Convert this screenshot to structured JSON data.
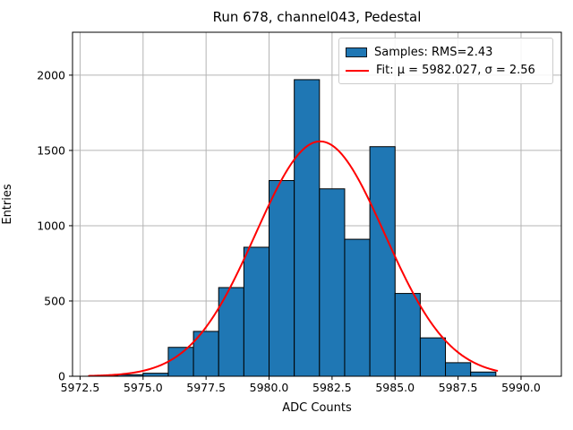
{
  "figure": {
    "title": "Run 678, channel043, Pedestal"
  },
  "chart_data": {
    "type": "bar",
    "subtype": "histogram-with-gaussian-fit",
    "title": "Run 678, channel043, Pedestal",
    "xlabel": "ADC Counts",
    "ylabel": "Entries",
    "xlim": [
      5972.2,
      5991.6
    ],
    "ylim": [
      0,
      2285
    ],
    "grid": true,
    "grid_color": "#b4b4b4",
    "x_ticks": [
      5972.5,
      5975.0,
      5977.5,
      5980.0,
      5982.5,
      5985.0,
      5987.5,
      5990.0
    ],
    "x_tick_labels": [
      "5972.5",
      "5975.0",
      "5977.5",
      "5980.0",
      "5982.5",
      "5985.0",
      "5987.5",
      "5990.0"
    ],
    "y_ticks": [
      0,
      500,
      1000,
      1500,
      2000
    ],
    "y_tick_labels": [
      "0",
      "500",
      "1000",
      "1500",
      "2000"
    ],
    "histogram": {
      "legend_label": "Samples: RMS=2.43",
      "fill_color": "#1f77b4",
      "edge_color": "#000000",
      "bin_edges": [
        5973,
        5974,
        5975,
        5976,
        5977,
        5978,
        5979,
        5980,
        5981,
        5982,
        5983,
        5984,
        5985,
        5986,
        5987,
        5988,
        5989
      ],
      "counts": [
        4,
        10,
        20,
        192,
        298,
        589,
        857,
        1300,
        1970,
        1245,
        910,
        1525,
        550,
        255,
        90,
        28
      ]
    },
    "fit_curve": {
      "legend_label": "Fit: μ = 5982.027, σ = 2.56",
      "model": "gaussian",
      "mu": 5982.027,
      "sigma": 2.56,
      "amplitude": 1560,
      "x_range": [
        5972.85,
        5989.05
      ],
      "color": "#ff0000",
      "line_width": 2
    },
    "legend_position": "upper right"
  }
}
